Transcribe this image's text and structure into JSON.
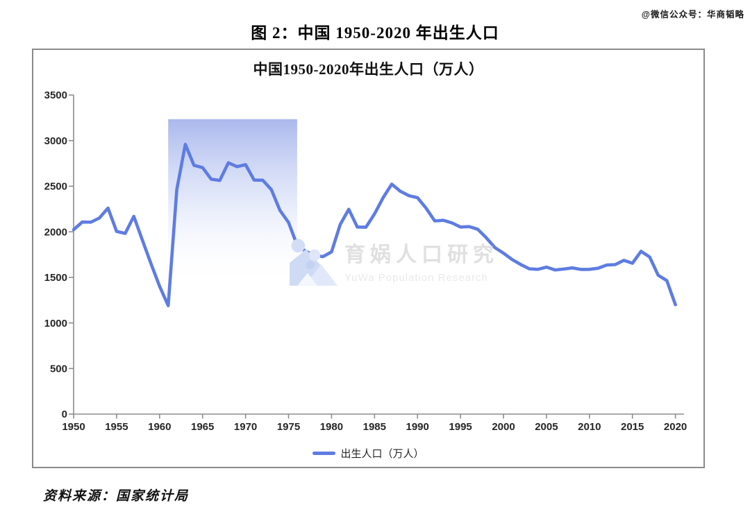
{
  "page": {
    "watermark_top_right": "@微信公众号：华商韬略",
    "figure_title": "图 2：中国 1950-2020 年出生人口",
    "source_note": "资料来源：国家统计局"
  },
  "chart": {
    "inner_title": "中国1950-2020年出生人口（万人）",
    "legend_label": "出生人口（万人）",
    "watermark": {
      "logo": "yuwa-logo",
      "cn": "育娲人口研究",
      "en": "YuWa Population Research"
    },
    "colors": {
      "line": "#5E7CE2",
      "highlight_top": "#A6B4EC",
      "axis": "#8C8C8C",
      "frame": "#8A8A8A",
      "tick_label": "#262626"
    }
  },
  "chart_data": {
    "type": "line",
    "title": "中国1950-2020年出生人口（万人）",
    "xlabel": "",
    "ylabel": "",
    "ylim": [
      0,
      3500
    ],
    "xlim": [
      1950,
      2020
    ],
    "grid": false,
    "legend_position": "bottom-center",
    "x_ticks": [
      1950,
      1955,
      1960,
      1965,
      1970,
      1975,
      1980,
      1985,
      1990,
      1995,
      2000,
      2005,
      2010,
      2015,
      2020
    ],
    "y_ticks": [
      0,
      500,
      1000,
      1500,
      2000,
      2500,
      3000,
      3500
    ],
    "years": [
      1950,
      1951,
      1952,
      1953,
      1954,
      1955,
      1956,
      1957,
      1958,
      1959,
      1960,
      1961,
      1962,
      1963,
      1964,
      1965,
      1966,
      1967,
      1968,
      1969,
      1970,
      1971,
      1972,
      1973,
      1974,
      1975,
      1976,
      1977,
      1978,
      1979,
      1980,
      1981,
      1982,
      1983,
      1984,
      1985,
      1986,
      1987,
      1988,
      1989,
      1990,
      1991,
      1992,
      1993,
      1994,
      1995,
      1996,
      1997,
      1998,
      1999,
      2000,
      2001,
      2002,
      2003,
      2004,
      2005,
      2006,
      2007,
      2008,
      2009,
      2010,
      2011,
      2012,
      2013,
      2014,
      2015,
      2016,
      2017,
      2018,
      2019,
      2020
    ],
    "series": [
      {
        "name": "出生人口（万人）",
        "values": [
          2023,
          2107,
          2105,
          2151,
          2260,
          2004,
          1982,
          2169,
          1909,
          1650,
          1402,
          1190,
          2464,
          2959,
          2729,
          2704,
          2577,
          2563,
          2757,
          2715,
          2736,
          2567,
          2566,
          2463,
          2235,
          2102,
          1853,
          1786,
          1745,
          1727,
          1779,
          2078,
          2247,
          2052,
          2050,
          2196,
          2374,
          2522,
          2445,
          2396,
          2374,
          2258,
          2119,
          2126,
          2098,
          2052,
          2057,
          2028,
          1934,
          1827,
          1765,
          1696,
          1641,
          1594,
          1588,
          1612,
          1581,
          1591,
          1604,
          1587,
          1588,
          1600,
          1635,
          1640,
          1687,
          1655,
          1786,
          1723,
          1523,
          1465,
          1200
        ]
      }
    ],
    "highlight_region": {
      "x_start": 1961,
      "x_end": 1976,
      "y_top": 3235,
      "y_bottom": 1400,
      "style": "vertical gradient, blue at top fading to white at bottom"
    }
  }
}
